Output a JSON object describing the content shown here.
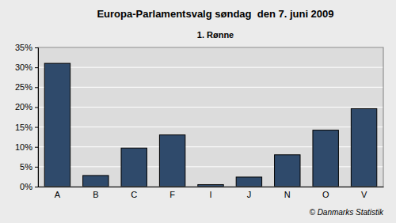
{
  "chart_data": {
    "type": "bar",
    "title": "Europa-Parlamentsvalg søndag  den 7. juni 2009",
    "subtitle": "1. Rønne",
    "annotation": "© Danmarks Statistik",
    "categories": [
      "A",
      "B",
      "C",
      "F",
      "I",
      "J",
      "N",
      "O",
      "V"
    ],
    "values": [
      31,
      2.8,
      9.7,
      13,
      0.5,
      2.4,
      8,
      14.2,
      19.6
    ],
    "color": "#2f4a6b",
    "ylim": [
      0,
      35
    ],
    "yticks": [
      {
        "value": 0,
        "label": "0%"
      },
      {
        "value": 5,
        "label": "5%"
      },
      {
        "value": 10,
        "label": "10%"
      },
      {
        "value": 15,
        "label": "15%"
      },
      {
        "value": 20,
        "label": "20%"
      },
      {
        "value": 25,
        "label": "25%"
      },
      {
        "value": 30,
        "label": "30%"
      },
      {
        "value": 35,
        "label": "35%"
      }
    ],
    "grid": true
  }
}
